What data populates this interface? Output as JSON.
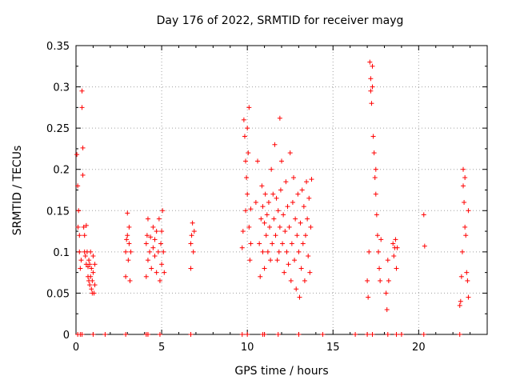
{
  "chart_data": {
    "type": "scatter",
    "title": "Day 176 of 2022, SRMTID for receiver mayg",
    "xlabel": "GPS time / hours",
    "ylabel": "SRMTID / TECUs",
    "xlim": [
      0,
      24
    ],
    "ylim": [
      0,
      0.35
    ],
    "xticks": [
      0,
      5,
      10,
      15,
      20
    ],
    "yticks": [
      0,
      0.05,
      0.1,
      0.15,
      0.2,
      0.25,
      0.3,
      0.35
    ],
    "ytick_labels": [
      "0",
      "0.05",
      "0.1",
      "0.15",
      "0.2",
      "0.25",
      "0.3",
      "0.35"
    ],
    "grid": true,
    "marker": "+",
    "color": "#ff0000",
    "series": [
      {
        "name": "SRMTID",
        "points": [
          [
            0.05,
            0.218
          ],
          [
            0.1,
            0.18
          ],
          [
            0.12,
            0.13
          ],
          [
            0.15,
            0.15
          ],
          [
            0.2,
            0.1
          ],
          [
            0.2,
            0.12
          ],
          [
            0.25,
            0.08
          ],
          [
            0.3,
            0.09
          ],
          [
            0.35,
            0.295
          ],
          [
            0.35,
            0.275
          ],
          [
            0.4,
            0.226
          ],
          [
            0.4,
            0.193
          ],
          [
            0.45,
            0.13
          ],
          [
            0.5,
            0.12
          ],
          [
            0.5,
            0.1
          ],
          [
            0.55,
            0.095
          ],
          [
            0.6,
            0.085
          ],
          [
            0.6,
            0.132
          ],
          [
            0.65,
            0.1
          ],
          [
            0.7,
            0.07
          ],
          [
            0.7,
            0.082
          ],
          [
            0.75,
            0.065
          ],
          [
            0.75,
            0.09
          ],
          [
            0.8,
            0.06
          ],
          [
            0.8,
            0.085
          ],
          [
            0.85,
            0.07
          ],
          [
            0.85,
            0.1
          ],
          [
            0.9,
            0.055
          ],
          [
            0.9,
            0.08
          ],
          [
            0.95,
            0.05
          ],
          [
            0.95,
            0.065
          ],
          [
            1.0,
            0.075
          ],
          [
            1.0,
            0.095
          ],
          [
            1.05,
            0.05
          ],
          [
            1.1,
            0.06
          ],
          [
            1.1,
            0.085
          ],
          [
            2.9,
            0.07
          ],
          [
            2.9,
            0.1
          ],
          [
            2.95,
            0.115
          ],
          [
            3.0,
            0.12
          ],
          [
            3.0,
            0.147
          ],
          [
            3.05,
            0.09
          ],
          [
            3.1,
            0.11
          ],
          [
            3.1,
            0.13
          ],
          [
            3.15,
            0.065
          ],
          [
            3.2,
            0.1
          ],
          [
            4.1,
            0.07
          ],
          [
            4.1,
            0.11
          ],
          [
            4.15,
            0.12
          ],
          [
            4.2,
            0.09
          ],
          [
            4.2,
            0.14
          ],
          [
            4.3,
            0.1
          ],
          [
            4.35,
            0.118
          ],
          [
            4.4,
            0.08
          ],
          [
            4.5,
            0.105
          ],
          [
            4.5,
            0.13
          ],
          [
            4.6,
            0.095
          ],
          [
            4.6,
            0.115
          ],
          [
            4.7,
            0.075
          ],
          [
            4.7,
            0.125
          ],
          [
            4.8,
            0.1
          ],
          [
            4.85,
            0.14
          ],
          [
            4.9,
            0.065
          ],
          [
            4.95,
            0.11
          ],
          [
            5.0,
            0.085
          ],
          [
            5.0,
            0.125
          ],
          [
            5.05,
            0.15
          ],
          [
            5.1,
            0.1
          ],
          [
            5.15,
            0.075
          ],
          [
            6.7,
            0.08
          ],
          [
            6.7,
            0.11
          ],
          [
            6.75,
            0.12
          ],
          [
            6.8,
            0.135
          ],
          [
            6.85,
            0.1
          ],
          [
            6.9,
            0.125
          ],
          [
            9.7,
            0.105
          ],
          [
            9.75,
            0.125
          ],
          [
            9.8,
            0.26
          ],
          [
            9.85,
            0.24
          ],
          [
            9.9,
            0.21
          ],
          [
            9.9,
            0.15
          ],
          [
            9.95,
            0.19
          ],
          [
            10.0,
            0.25
          ],
          [
            10.0,
            0.17
          ],
          [
            10.05,
            0.22
          ],
          [
            10.1,
            0.275
          ],
          [
            10.1,
            0.13
          ],
          [
            10.15,
            0.09
          ],
          [
            10.2,
            0.11
          ],
          [
            10.2,
            0.152
          ],
          [
            10.5,
            0.16
          ],
          [
            10.6,
            0.21
          ],
          [
            10.7,
            0.11
          ],
          [
            10.75,
            0.07
          ],
          [
            10.8,
            0.14
          ],
          [
            10.85,
            0.18
          ],
          [
            10.9,
            0.1
          ],
          [
            10.9,
            0.155
          ],
          [
            11.0,
            0.08
          ],
          [
            11.0,
            0.135
          ],
          [
            11.05,
            0.17
          ],
          [
            11.1,
            0.12
          ],
          [
            11.15,
            0.145
          ],
          [
            11.2,
            0.1
          ],
          [
            11.25,
            0.16
          ],
          [
            11.3,
            0.13
          ],
          [
            11.35,
            0.09
          ],
          [
            11.4,
            0.2
          ],
          [
            11.45,
            0.11
          ],
          [
            11.5,
            0.17
          ],
          [
            11.55,
            0.14
          ],
          [
            11.6,
            0.23
          ],
          [
            11.65,
            0.12
          ],
          [
            11.7,
            0.165
          ],
          [
            11.75,
            0.09
          ],
          [
            11.8,
            0.15
          ],
          [
            11.85,
            0.1
          ],
          [
            11.9,
            0.13
          ],
          [
            11.9,
            0.262
          ],
          [
            11.95,
            0.175
          ],
          [
            12.0,
            0.21
          ],
          [
            12.05,
            0.11
          ],
          [
            12.1,
            0.145
          ],
          [
            12.15,
            0.075
          ],
          [
            12.2,
            0.125
          ],
          [
            12.25,
            0.185
          ],
          [
            12.3,
            0.1
          ],
          [
            12.35,
            0.155
          ],
          [
            12.4,
            0.085
          ],
          [
            12.45,
            0.13
          ],
          [
            12.5,
            0.22
          ],
          [
            12.55,
            0.065
          ],
          [
            12.6,
            0.11
          ],
          [
            12.65,
            0.16
          ],
          [
            12.7,
            0.19
          ],
          [
            12.75,
            0.09
          ],
          [
            12.8,
            0.14
          ],
          [
            12.85,
            0.055
          ],
          [
            12.9,
            0.12
          ],
          [
            12.95,
            0.17
          ],
          [
            13.0,
            0.1
          ],
          [
            13.05,
            0.045
          ],
          [
            13.1,
            0.135
          ],
          [
            13.15,
            0.08
          ],
          [
            13.2,
            0.175
          ],
          [
            13.25,
            0.11
          ],
          [
            13.3,
            0.155
          ],
          [
            13.35,
            0.065
          ],
          [
            13.4,
            0.12
          ],
          [
            13.45,
            0.185
          ],
          [
            13.5,
            0.14
          ],
          [
            13.55,
            0.095
          ],
          [
            13.6,
            0.165
          ],
          [
            13.65,
            0.075
          ],
          [
            13.7,
            0.13
          ],
          [
            13.75,
            0.188
          ],
          [
            17.0,
            0.065
          ],
          [
            17.05,
            0.045
          ],
          [
            17.1,
            0.1
          ],
          [
            17.15,
            0.33
          ],
          [
            17.2,
            0.31
          ],
          [
            17.2,
            0.295
          ],
          [
            17.25,
            0.28
          ],
          [
            17.3,
            0.325
          ],
          [
            17.3,
            0.3
          ],
          [
            17.35,
            0.24
          ],
          [
            17.4,
            0.22
          ],
          [
            17.45,
            0.19
          ],
          [
            17.5,
            0.2
          ],
          [
            17.5,
            0.17
          ],
          [
            17.55,
            0.145
          ],
          [
            17.6,
            0.12
          ],
          [
            17.65,
            0.1
          ],
          [
            17.7,
            0.08
          ],
          [
            17.75,
            0.065
          ],
          [
            17.8,
            0.115
          ],
          [
            18.1,
            0.05
          ],
          [
            18.15,
            0.03
          ],
          [
            18.2,
            0.09
          ],
          [
            18.25,
            0.065
          ],
          [
            18.5,
            0.11
          ],
          [
            18.55,
            0.095
          ],
          [
            18.6,
            0.105
          ],
          [
            18.65,
            0.115
          ],
          [
            18.7,
            0.08
          ],
          [
            18.75,
            0.105
          ],
          [
            20.3,
            0.145
          ],
          [
            20.35,
            0.107
          ],
          [
            22.4,
            0.035
          ],
          [
            22.45,
            0.04
          ],
          [
            22.5,
            0.07
          ],
          [
            22.55,
            0.1
          ],
          [
            22.6,
            0.2
          ],
          [
            22.6,
            0.18
          ],
          [
            22.65,
            0.16
          ],
          [
            22.7,
            0.13
          ],
          [
            22.7,
            0.19
          ],
          [
            22.75,
            0.12
          ],
          [
            22.8,
            0.075
          ],
          [
            22.85,
            0.065
          ],
          [
            22.9,
            0.045
          ],
          [
            22.9,
            0.15
          ]
        ]
      }
    ],
    "zero_markers_x": [
      0.1,
      0.25,
      0.35,
      1.0,
      1.7,
      2.9,
      4.1,
      4.2,
      4.9,
      6.7,
      9.7,
      10.0,
      10.9,
      11.0,
      11.8,
      13.0,
      14.4,
      16.3,
      17.0,
      17.3,
      18.2,
      18.7,
      19.0,
      20.3,
      22.4
    ]
  }
}
